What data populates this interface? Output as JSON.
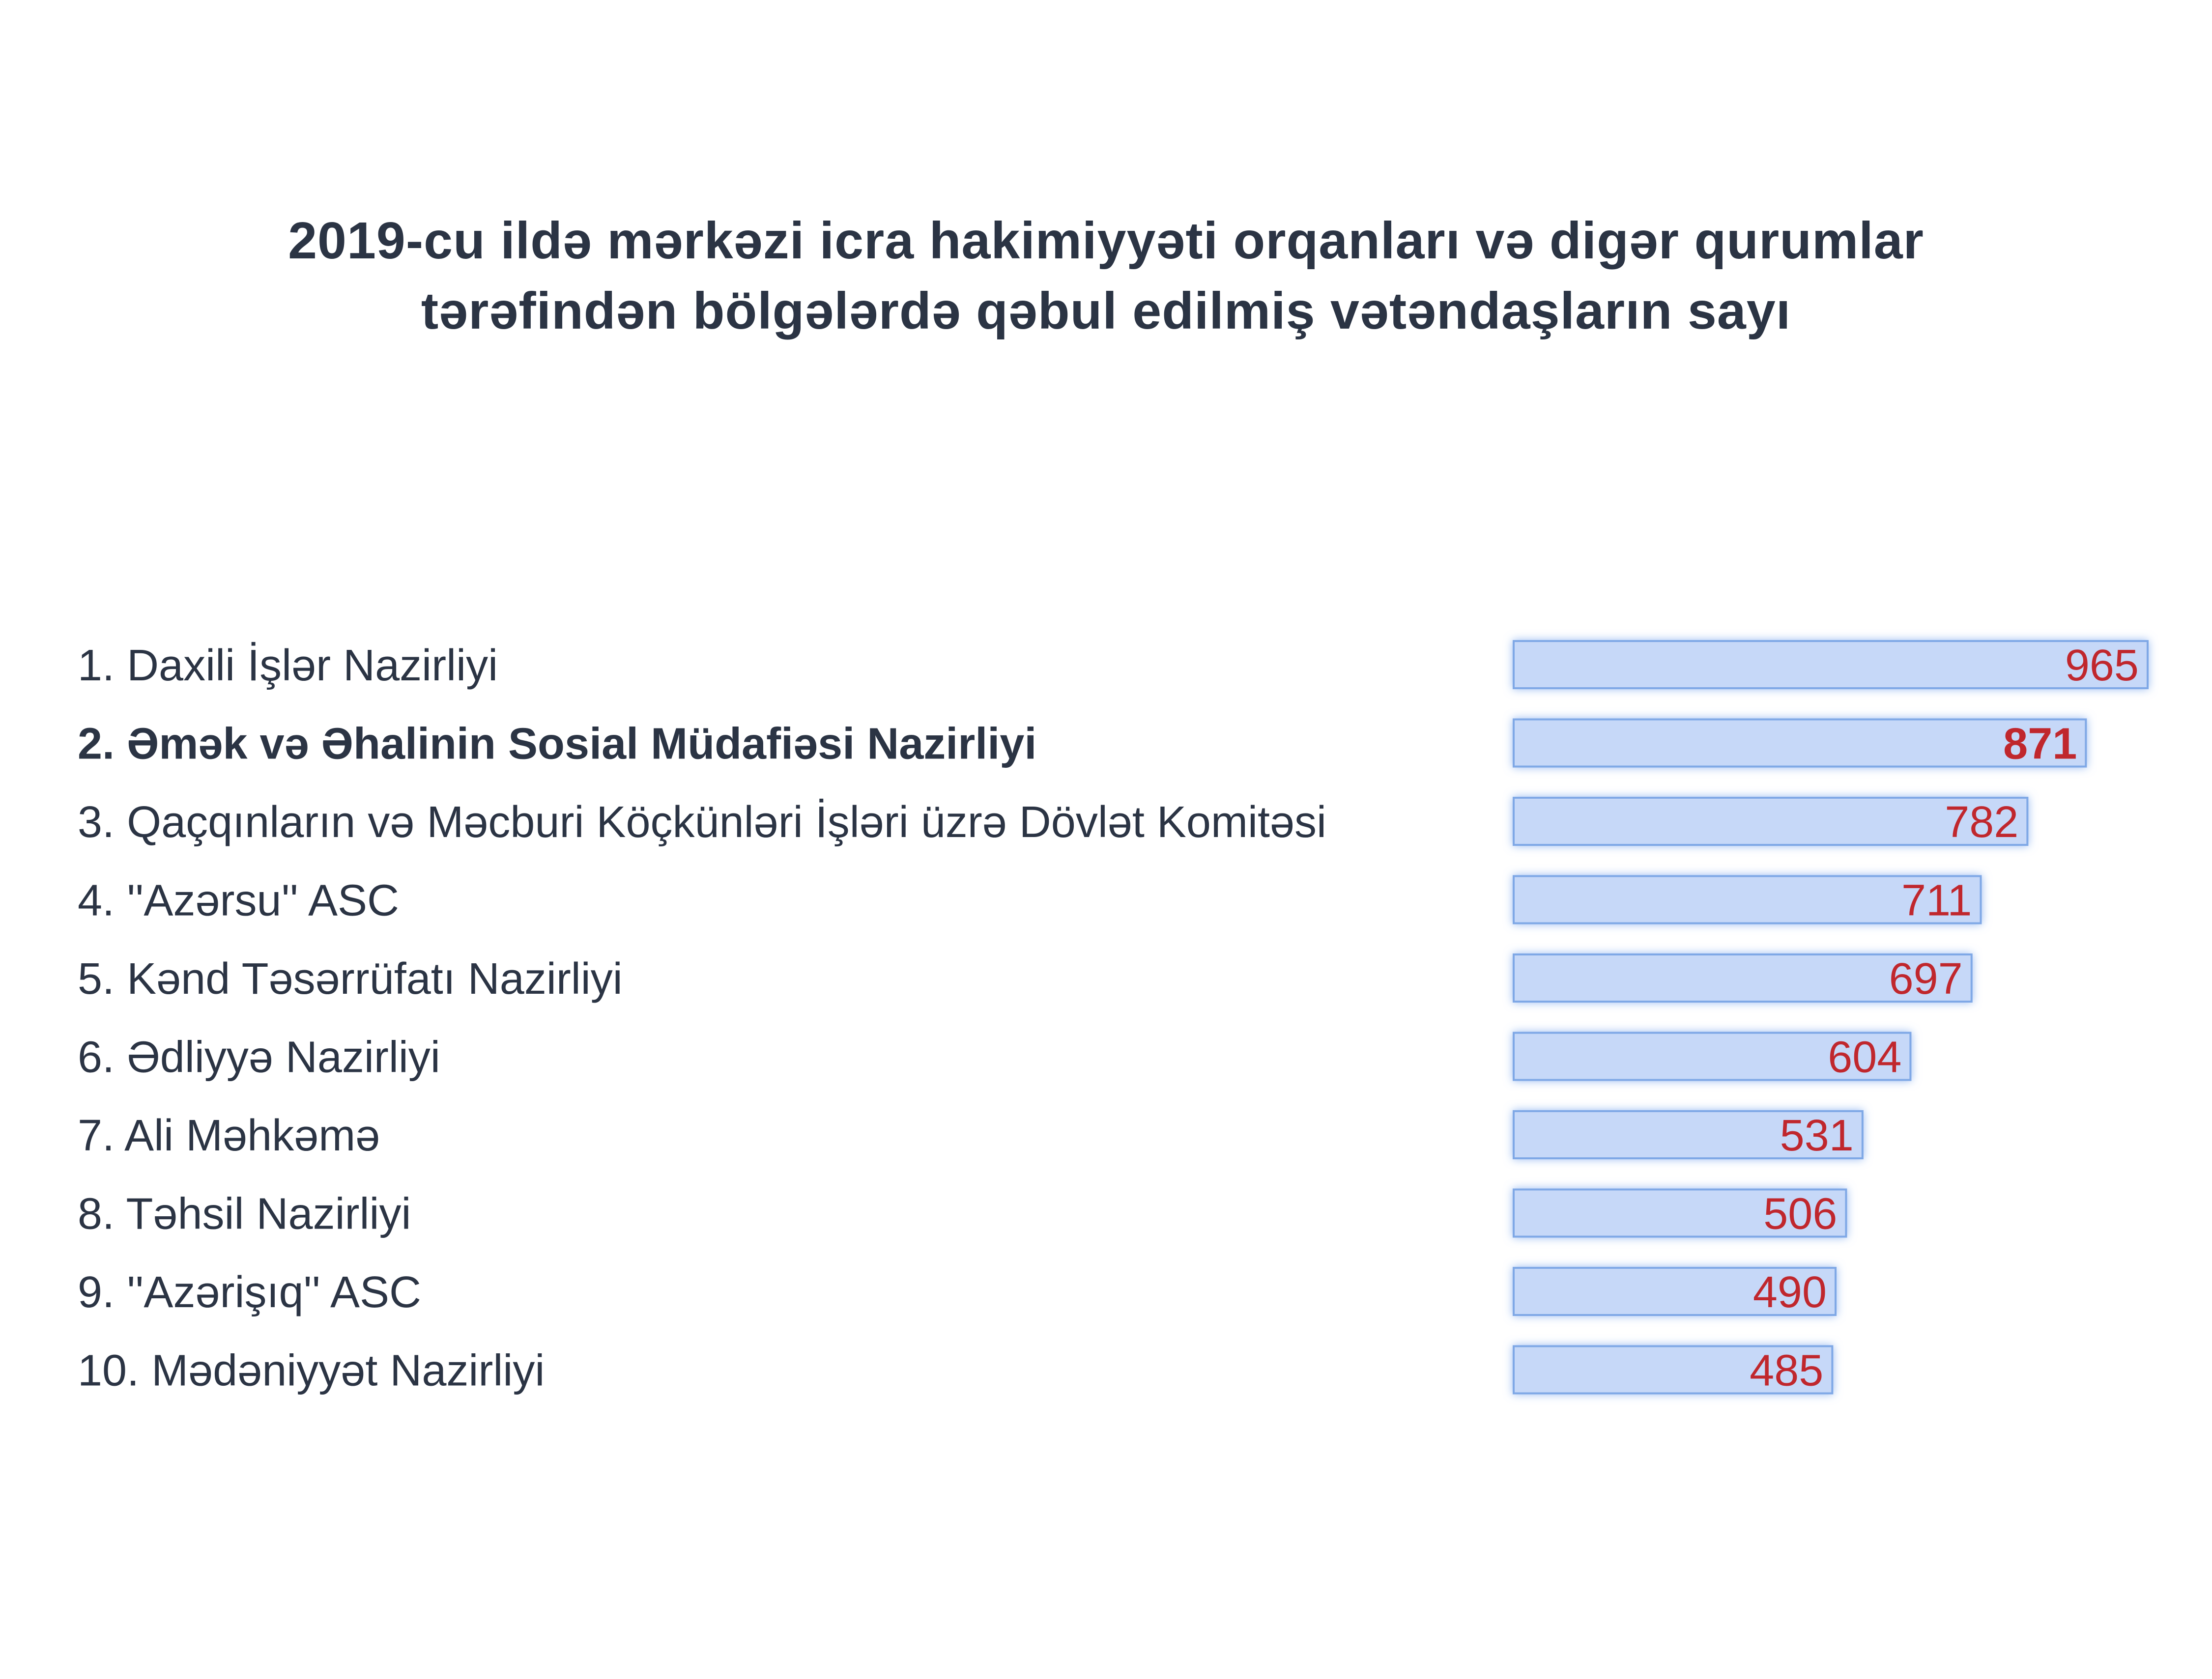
{
  "title": {
    "line1": "2019-cu ildə mərkəzi icra hakimiyyəti orqanları və digər qurumlar",
    "line2": "tərəfindən bölgələrdə qəbul edilmiş vətəndaşların sayı"
  },
  "colors": {
    "text": "#2b3444",
    "bar_fill": "#c6d8f8",
    "bar_border": "#7fa8e6",
    "bar_glow": "#8fb4f0",
    "value_text": "#c0272d"
  },
  "chart_data": {
    "type": "bar",
    "orientation": "horizontal",
    "title": "2019-cu ildə mərkəzi icra hakimiyyəti orqanları və digər qurumlar tərəfindən bölgələrdə qəbul edilmiş vətəndaşların sayı",
    "categories": [
      "1. Daxili İşlər Nazirliyi",
      "2. Əmək və Əhalinin Sosial Müdafiəsi Nazirliyi",
      "3. Qaçqınların və Məcburi Köçkünləri İşləri üzrə Dövlət Komitəsi",
      "4. ''Azərsu'' ASC",
      "5. Kənd Təsərrüfatı Nazirliyi",
      "6. Ədliyyə Nazirliyi",
      "7. Ali Məhkəmə",
      "8. Təhsil Nazirliyi",
      "9. ''Azərişıq'' ASC",
      "10. Mədəniyyət Nazirliyi"
    ],
    "values": [
      965,
      871,
      782,
      711,
      697,
      604,
      531,
      506,
      490,
      485
    ],
    "value_labels": [
      "965",
      "871",
      "782",
      "711",
      "697",
      "604",
      "531",
      "506",
      "490",
      "485"
    ],
    "highlighted_index": 1,
    "xlim": [
      0,
      965
    ],
    "grid": false,
    "legend": "none"
  }
}
